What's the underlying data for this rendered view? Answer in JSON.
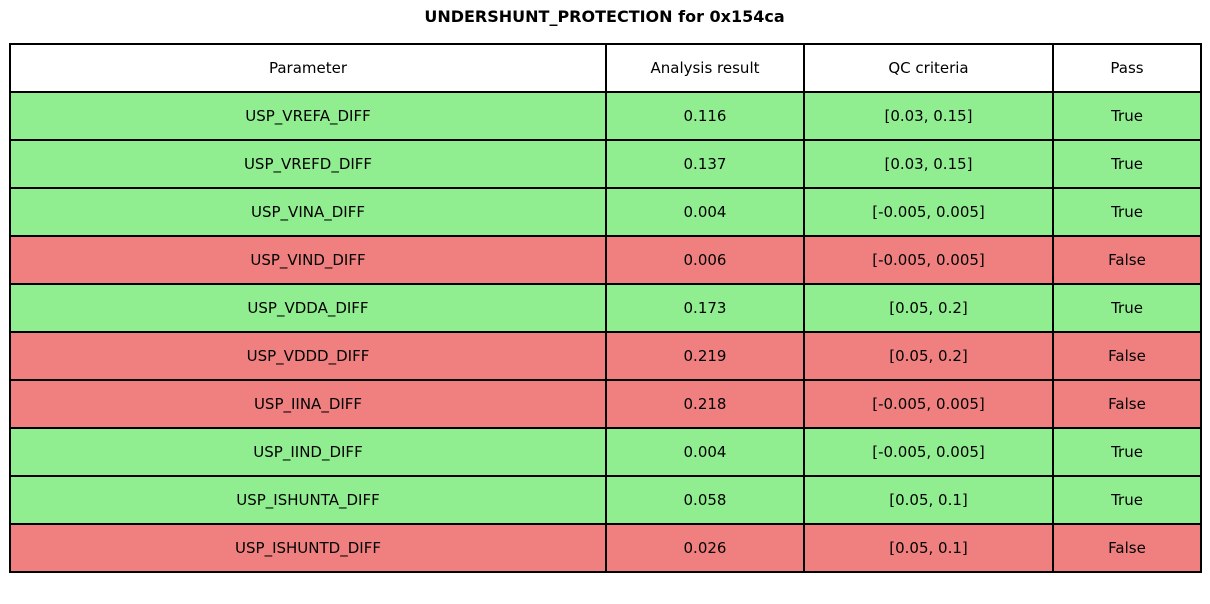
{
  "chart_data": {
    "type": "table",
    "title": "UNDERSHUNT_PROTECTION for 0x154ca",
    "columns": [
      "Parameter",
      "Analysis result",
      "QC criteria",
      "Pass"
    ],
    "rows": [
      {
        "parameter": "USP_VREFA_DIFF",
        "result": "0.116",
        "criteria": "[0.03, 0.15]",
        "pass": "True"
      },
      {
        "parameter": "USP_VREFD_DIFF",
        "result": "0.137",
        "criteria": "[0.03, 0.15]",
        "pass": "True"
      },
      {
        "parameter": "USP_VINA_DIFF",
        "result": "0.004",
        "criteria": "[-0.005, 0.005]",
        "pass": "True"
      },
      {
        "parameter": "USP_VIND_DIFF",
        "result": "0.006",
        "criteria": "[-0.005, 0.005]",
        "pass": "False"
      },
      {
        "parameter": "USP_VDDA_DIFF",
        "result": "0.173",
        "criteria": "[0.05, 0.2]",
        "pass": "True"
      },
      {
        "parameter": "USP_VDDD_DIFF",
        "result": "0.219",
        "criteria": "[0.05, 0.2]",
        "pass": "False"
      },
      {
        "parameter": "USP_IINA_DIFF",
        "result": "0.218",
        "criteria": "[-0.005, 0.005]",
        "pass": "False"
      },
      {
        "parameter": "USP_IIND_DIFF",
        "result": "0.004",
        "criteria": "[-0.005, 0.005]",
        "pass": "True"
      },
      {
        "parameter": "USP_ISHUNTA_DIFF",
        "result": "0.058",
        "criteria": "[0.05, 0.1]",
        "pass": "True"
      },
      {
        "parameter": "USP_ISHUNTD_DIFF",
        "result": "0.026",
        "criteria": "[0.05, 0.1]",
        "pass": "False"
      }
    ],
    "colors": {
      "pass_row": "#90ee90",
      "fail_row": "#f08080",
      "header_bg": "#ffffff",
      "border": "#000000"
    },
    "layout": {
      "grid": "on",
      "legend": "none"
    }
  }
}
